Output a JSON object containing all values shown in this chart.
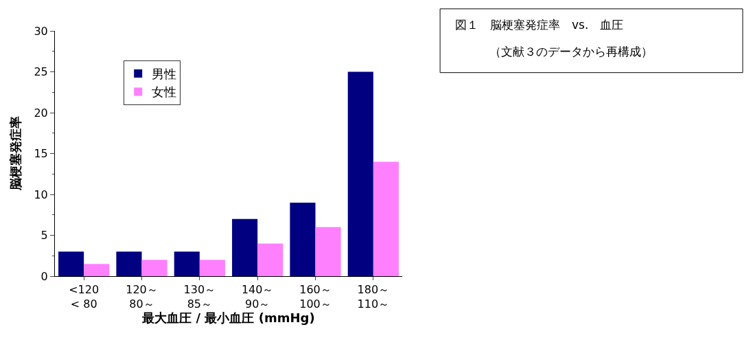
{
  "chart_data": {
    "type": "bar",
    "title": "図１　脳梗塞発症率　vs.　血圧",
    "subtitle": "（文献３のデータから再構成）",
    "xlabel": "最大血圧 / 最小血圧 (mmHg)",
    "ylabel": "脳梗塞発症率",
    "categories": [
      "<120\n< 80",
      "120～\n80～",
      "130～\n85～",
      "140～\n90～",
      "160～\n100～",
      "180～\n110～"
    ],
    "series": [
      {
        "name": "男性",
        "color": "#000080",
        "values": [
          3,
          3,
          3,
          7,
          9,
          25
        ]
      },
      {
        "name": "女性",
        "color": "#ff80ff",
        "values": [
          1.5,
          2,
          2,
          4,
          6,
          14
        ]
      }
    ],
    "ylim": [
      0,
      30
    ],
    "yticks": [
      0,
      5,
      10,
      15,
      20,
      25,
      30
    ],
    "legend": "top left"
  }
}
